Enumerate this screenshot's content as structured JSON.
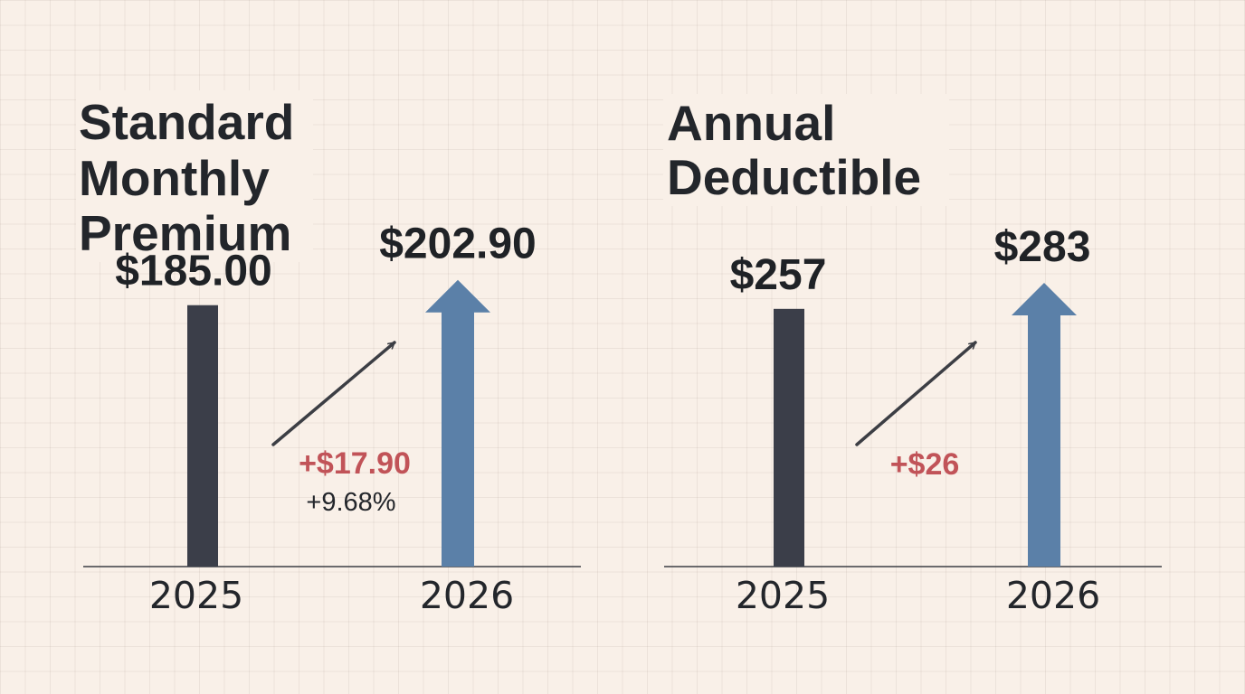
{
  "colors": {
    "background": "#f9f0e8",
    "bar_2025": "#3b3e49",
    "bar_2026": "#5b80a8",
    "change": "#c15358",
    "text": "#23262b"
  },
  "chart_data": [
    {
      "type": "bar",
      "title_lines": [
        "Standard",
        "Monthly",
        "Premium"
      ],
      "categories": [
        "2025",
        "2026"
      ],
      "values": [
        185.0,
        202.9
      ],
      "value_labels": [
        "$185.00",
        "$202.90"
      ],
      "change_label": "+$17.90",
      "change_pct_label": "+9.68%",
      "ylim": [
        0,
        220
      ],
      "grid": true
    },
    {
      "type": "bar",
      "title_lines": [
        "Annual",
        "Deductible"
      ],
      "categories": [
        "2025",
        "2026"
      ],
      "values": [
        257,
        283
      ],
      "value_labels": [
        "$257",
        "$283"
      ],
      "change_label": "+$26",
      "ylim": [
        0,
        310
      ],
      "grid": true
    }
  ]
}
